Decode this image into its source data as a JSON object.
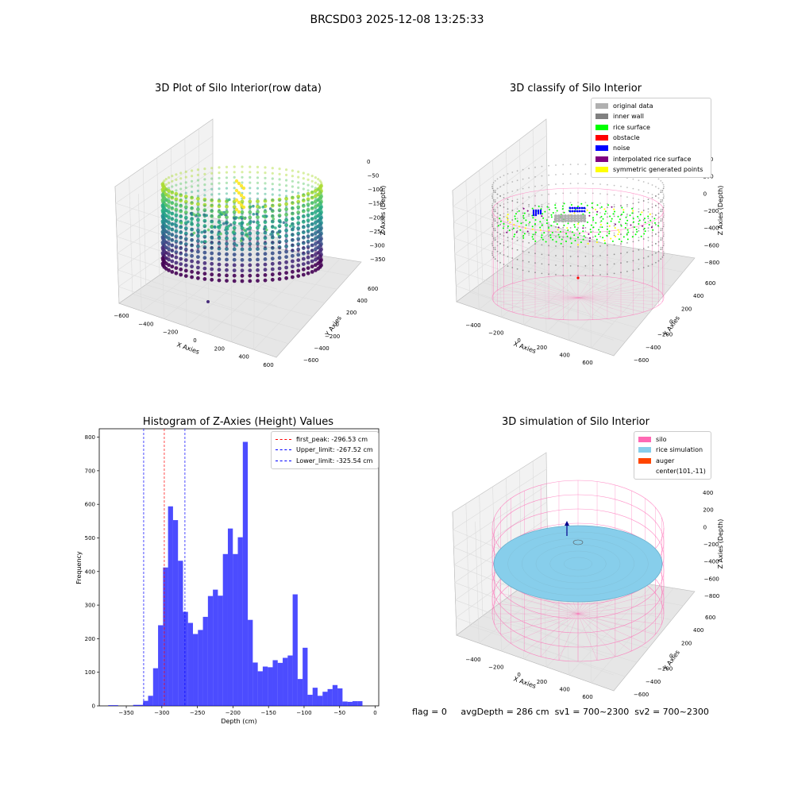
{
  "suptitle": "BRCSD03 2025-12-08 13:25:33",
  "footer": {
    "flag": "flag = 0",
    "avg": "avgDepth = 286 cm",
    "sv1": "sv1 = 700~2300",
    "sv2": "sv2 = 700~2300"
  },
  "colors": {
    "hist_bar": "#0000ff",
    "peak": "#ff0000",
    "limit": "#0000ff",
    "silo": "#ff69b4",
    "rice": "#87ceeb",
    "auger": "#ff4500"
  },
  "chart_data": [
    {
      "type": "scatter",
      "title": "3D Plot of Silo Interior(row data)",
      "xlabel": "X Axies",
      "ylabel": "Y Axies",
      "zlabel": "Z Axies (Depth)",
      "xticks": [
        "−600",
        "−400",
        "−200",
        "0",
        "200",
        "400",
        "600"
      ],
      "yticks": [
        "600",
        "400",
        "200",
        "0",
        "−200",
        "−400",
        "−600"
      ],
      "zticks": [
        "0",
        "−50",
        "−100",
        "−150",
        "−200",
        "−250",
        "−300",
        "−350"
      ],
      "colormap": "viridis"
    },
    {
      "type": "scatter",
      "title": "3D classify of Silo Interior",
      "xlabel": "X Axies",
      "ylabel": "Y Axies",
      "zlabel": "Z Axies (Depth)",
      "xticks": [
        "−400",
        "−200",
        "0",
        "200",
        "400",
        "600"
      ],
      "yticks": [
        "600",
        "400",
        "200",
        "0",
        "−200",
        "−400",
        "−600"
      ],
      "zticks": [
        "400",
        "200",
        "0",
        "−200",
        "−400",
        "−600",
        "−800"
      ],
      "legend": [
        {
          "label": "original data",
          "color": "#b0b0b0"
        },
        {
          "label": "inner wall",
          "color": "#808080"
        },
        {
          "label": "rice surface",
          "color": "#00ff00"
        },
        {
          "label": "obstacle",
          "color": "#ff0000"
        },
        {
          "label": "noise",
          "color": "#0000ff"
        },
        {
          "label": "interpolated rice surface",
          "color": "#800080"
        },
        {
          "label": "symmetric generated points",
          "color": "#ffff00"
        }
      ]
    },
    {
      "type": "bar",
      "title": "Histogram of Z-Axies (Height) Values",
      "xlabel": "Depth (cm)",
      "ylabel": "Frequency",
      "xlim": [
        -388,
        5
      ],
      "ylim": [
        0,
        825
      ],
      "xticks": [
        -350,
        -300,
        -250,
        -200,
        -150,
        -100,
        -50,
        0
      ],
      "xtick_labels": [
        "−350",
        "−300",
        "−250",
        "−200",
        "−150",
        "−100",
        "−50",
        "0"
      ],
      "yticks": [
        0,
        100,
        200,
        300,
        400,
        500,
        600,
        700,
        800
      ],
      "bin_start": -375.4,
      "bin_width": 7.01,
      "values": [
        2,
        2,
        0,
        0,
        0,
        3,
        3,
        15,
        30,
        112,
        240,
        412,
        594,
        553,
        432,
        280,
        247,
        214,
        226,
        265,
        327,
        346,
        328,
        452,
        528,
        452,
        502,
        786,
        256,
        129,
        103,
        117,
        115,
        136,
        128,
        143,
        150,
        332,
        80,
        173,
        33,
        54,
        30,
        42,
        50,
        62,
        52,
        13,
        12,
        14,
        14
      ],
      "vlines": [
        {
          "label": "first_peak: -296.53 cm",
          "x": -296.53,
          "color": "#ff0000"
        },
        {
          "label": "Upper_limit: -267.52 cm",
          "x": -267.52,
          "color": "#0000ff"
        },
        {
          "label": "Lower_limit: -325.54 cm",
          "x": -325.54,
          "color": "#0000ff"
        }
      ]
    },
    {
      "type": "scatter",
      "title": "3D simulation of Silo Interior",
      "xlabel": "X Axies",
      "ylabel": "Y Axies",
      "zlabel": "Z Axies (Depth)",
      "xticks": [
        "−400",
        "−200",
        "0",
        "200",
        "400",
        "600"
      ],
      "yticks": [
        "600",
        "400",
        "200",
        "0",
        "−200",
        "−400",
        "−600"
      ],
      "zticks": [
        "400",
        "200",
        "0",
        "−200",
        "−400",
        "−600",
        "−800"
      ],
      "legend": [
        {
          "label": "silo",
          "color": "#ff69b4"
        },
        {
          "label": "rice simulation",
          "color": "#87ceeb"
        },
        {
          "label": "auger",
          "color": "#ff4500"
        },
        {
          "label": "center(101,-11)",
          "color": ""
        }
      ]
    }
  ]
}
